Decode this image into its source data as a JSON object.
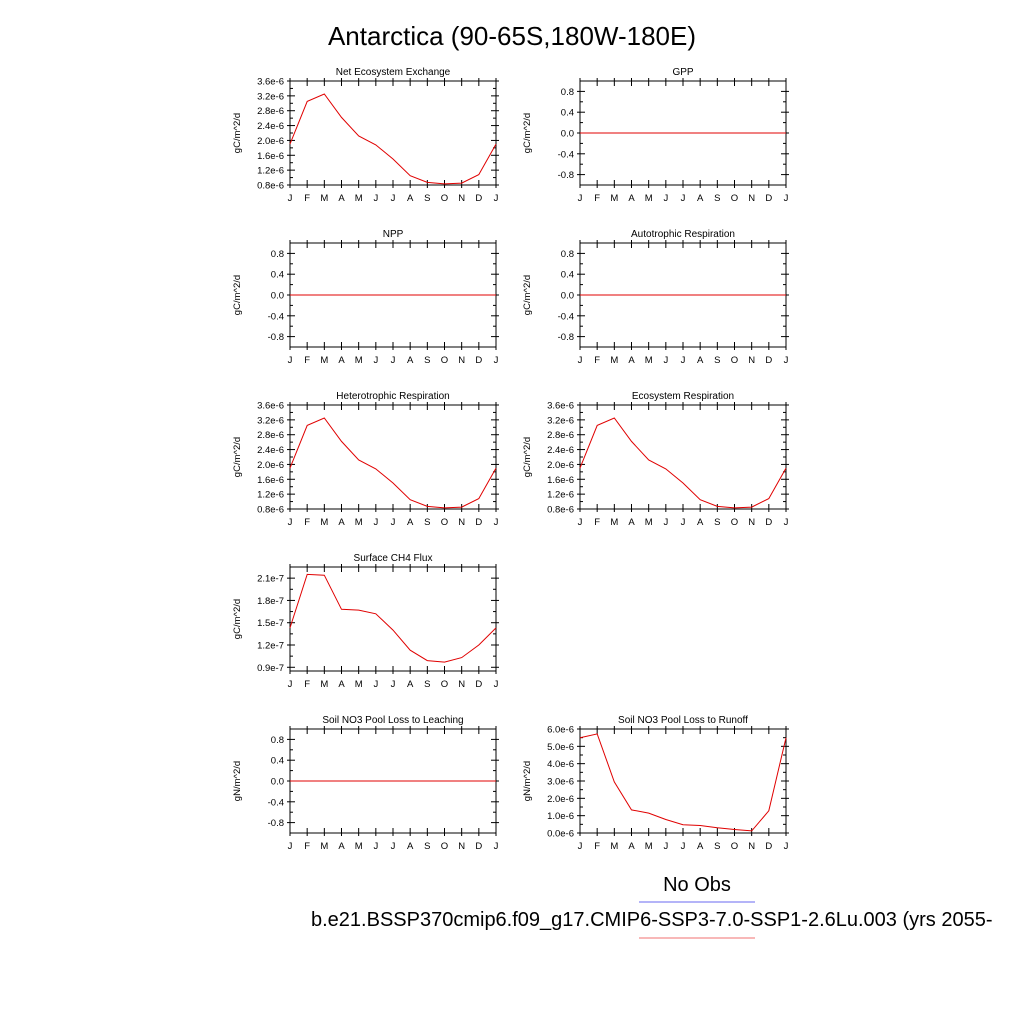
{
  "figure": {
    "title": "Antarctica (90-65S,180W-180E)",
    "legend": {
      "obs_label": "No Obs",
      "obs_color": "#6a6af0",
      "case_label": "b.e21.BSSP370cmip6.f09_g17.CMIP6-SSP3-7.0-SSP1-2.6Lu.003 (yrs 2055-",
      "case_color": "#f07070"
    },
    "series_color": "#e00000"
  },
  "chart_data": [
    {
      "type": "line",
      "title": "Net Ecosystem Exchange",
      "ylabel": "gC/m^2/d",
      "categories": [
        "J",
        "F",
        "M",
        "A",
        "M",
        "J",
        "J",
        "A",
        "S",
        "O",
        "N",
        "D",
        "J"
      ],
      "yticks": [
        "3.6e-6",
        "3.2e-6",
        "2.8e-6",
        "2.4e-6",
        "2.0e-6",
        "1.6e-6",
        "1.2e-6",
        "0.8e-6"
      ],
      "yticks_values": [
        3.6e-06,
        3.2e-06,
        2.8e-06,
        2.4e-06,
        2e-06,
        1.6e-06,
        1.2e-06,
        8e-07
      ],
      "ylim": [
        8e-07,
        3.6e-06
      ],
      "values": [
        1.9e-06,
        3.05e-06,
        3.25e-06,
        2.62e-06,
        2.12e-06,
        1.88e-06,
        1.5e-06,
        1.05e-06,
        8.7e-07,
        8.3e-07,
        8.5e-07,
        1.08e-06,
        1.9e-06
      ]
    },
    {
      "type": "line",
      "title": "GPP",
      "ylabel": "gC/m^2/d",
      "categories": [
        "J",
        "F",
        "M",
        "A",
        "M",
        "J",
        "J",
        "A",
        "S",
        "O",
        "N",
        "D",
        "J"
      ],
      "yticks": [
        "0.8",
        "0.4",
        "0.0",
        "-0.4",
        "-0.8"
      ],
      "yticks_values": [
        0.8,
        0.4,
        0.0,
        -0.4,
        -0.8
      ],
      "ylim": [
        -1.0,
        1.0
      ],
      "values": [
        0,
        0,
        0,
        0,
        0,
        0,
        0,
        0,
        0,
        0,
        0,
        0,
        0
      ]
    },
    {
      "type": "line",
      "title": "NPP",
      "ylabel": "gC/m^2/d",
      "categories": [
        "J",
        "F",
        "M",
        "A",
        "M",
        "J",
        "J",
        "A",
        "S",
        "O",
        "N",
        "D",
        "J"
      ],
      "yticks": [
        "0.8",
        "0.4",
        "0.0",
        "-0.4",
        "-0.8"
      ],
      "yticks_values": [
        0.8,
        0.4,
        0.0,
        -0.4,
        -0.8
      ],
      "ylim": [
        -1.0,
        1.0
      ],
      "values": [
        0,
        0,
        0,
        0,
        0,
        0,
        0,
        0,
        0,
        0,
        0,
        0,
        0
      ]
    },
    {
      "type": "line",
      "title": "Autotrophic Respiration",
      "ylabel": "gC/m^2/d",
      "categories": [
        "J",
        "F",
        "M",
        "A",
        "M",
        "J",
        "J",
        "A",
        "S",
        "O",
        "N",
        "D",
        "J"
      ],
      "yticks": [
        "0.8",
        "0.4",
        "0.0",
        "-0.4",
        "-0.8"
      ],
      "yticks_values": [
        0.8,
        0.4,
        0.0,
        -0.4,
        -0.8
      ],
      "ylim": [
        -1.0,
        1.0
      ],
      "values": [
        0,
        0,
        0,
        0,
        0,
        0,
        0,
        0,
        0,
        0,
        0,
        0,
        0
      ]
    },
    {
      "type": "line",
      "title": "Heterotrophic Respiration",
      "ylabel": "gC/m^2/d",
      "categories": [
        "J",
        "F",
        "M",
        "A",
        "M",
        "J",
        "J",
        "A",
        "S",
        "O",
        "N",
        "D",
        "J"
      ],
      "yticks": [
        "3.6e-6",
        "3.2e-6",
        "2.8e-6",
        "2.4e-6",
        "2.0e-6",
        "1.6e-6",
        "1.2e-6",
        "0.8e-6"
      ],
      "yticks_values": [
        3.6e-06,
        3.2e-06,
        2.8e-06,
        2.4e-06,
        2e-06,
        1.6e-06,
        1.2e-06,
        8e-07
      ],
      "ylim": [
        8e-07,
        3.6e-06
      ],
      "values": [
        1.9e-06,
        3.05e-06,
        3.25e-06,
        2.62e-06,
        2.12e-06,
        1.88e-06,
        1.5e-06,
        1.05e-06,
        8.7e-07,
        8.3e-07,
        8.5e-07,
        1.08e-06,
        1.9e-06
      ]
    },
    {
      "type": "line",
      "title": "Ecosystem Respiration",
      "ylabel": "gC/m^2/d",
      "categories": [
        "J",
        "F",
        "M",
        "A",
        "M",
        "J",
        "J",
        "A",
        "S",
        "O",
        "N",
        "D",
        "J"
      ],
      "yticks": [
        "3.6e-6",
        "3.2e-6",
        "2.8e-6",
        "2.4e-6",
        "2.0e-6",
        "1.6e-6",
        "1.2e-6",
        "0.8e-6"
      ],
      "yticks_values": [
        3.6e-06,
        3.2e-06,
        2.8e-06,
        2.4e-06,
        2e-06,
        1.6e-06,
        1.2e-06,
        8e-07
      ],
      "ylim": [
        8e-07,
        3.6e-06
      ],
      "values": [
        1.9e-06,
        3.05e-06,
        3.25e-06,
        2.62e-06,
        2.12e-06,
        1.88e-06,
        1.5e-06,
        1.05e-06,
        8.7e-07,
        8.3e-07,
        8.5e-07,
        1.08e-06,
        1.9e-06
      ]
    },
    {
      "type": "line",
      "title": "Surface CH4 Flux",
      "ylabel": "gC/m^2/d",
      "categories": [
        "J",
        "F",
        "M",
        "A",
        "M",
        "J",
        "J",
        "A",
        "S",
        "O",
        "N",
        "D",
        "J"
      ],
      "yticks": [
        "2.1e-7",
        "1.8e-7",
        "1.5e-7",
        "1.2e-7",
        "0.9e-7"
      ],
      "yticks_values": [
        2.1e-07,
        1.8e-07,
        1.5e-07,
        1.2e-07,
        9e-08
      ],
      "ylim": [
        8.5e-08,
        2.25e-07
      ],
      "values": [
        1.43e-07,
        2.15e-07,
        2.14e-07,
        1.68e-07,
        1.67e-07,
        1.62e-07,
        1.4e-07,
        1.13e-07,
        9.9e-08,
        9.7e-08,
        1.03e-07,
        1.2e-07,
        1.43e-07
      ]
    },
    {
      "type": "line",
      "title": "Soil NO3 Pool Loss to Leaching",
      "ylabel": "gN/m^2/d",
      "categories": [
        "J",
        "F",
        "M",
        "A",
        "M",
        "J",
        "J",
        "A",
        "S",
        "O",
        "N",
        "D",
        "J"
      ],
      "yticks": [
        "0.8",
        "0.4",
        "0.0",
        "-0.4",
        "-0.8"
      ],
      "yticks_values": [
        0.8,
        0.4,
        0.0,
        -0.4,
        -0.8
      ],
      "ylim": [
        -1.0,
        1.0
      ],
      "values": [
        0,
        0,
        0,
        0,
        0,
        0,
        0,
        0,
        0,
        0,
        0,
        0,
        0
      ]
    },
    {
      "type": "line",
      "title": "Soil NO3 Pool Loss to Runoff",
      "ylabel": "gN/m^2/d",
      "categories": [
        "J",
        "F",
        "M",
        "A",
        "M",
        "J",
        "J",
        "A",
        "S",
        "O",
        "N",
        "D",
        "J"
      ],
      "yticks": [
        "6.0e-6",
        "5.0e-6",
        "4.0e-6",
        "3.0e-6",
        "2.0e-6",
        "1.0e-6",
        "0.0e-6"
      ],
      "yticks_values": [
        6e-06,
        5e-06,
        4e-06,
        3e-06,
        2e-06,
        1e-06,
        0.0
      ],
      "ylim": [
        0.0,
        6e-06
      ],
      "values": [
        5.5e-06,
        5.72e-06,
        2.95e-06,
        1.33e-06,
        1.15e-06,
        7.8e-07,
        4.8e-07,
        4.3e-07,
        3e-07,
        2e-07,
        1.2e-07,
        1.28e-06,
        5.5e-06
      ]
    }
  ]
}
